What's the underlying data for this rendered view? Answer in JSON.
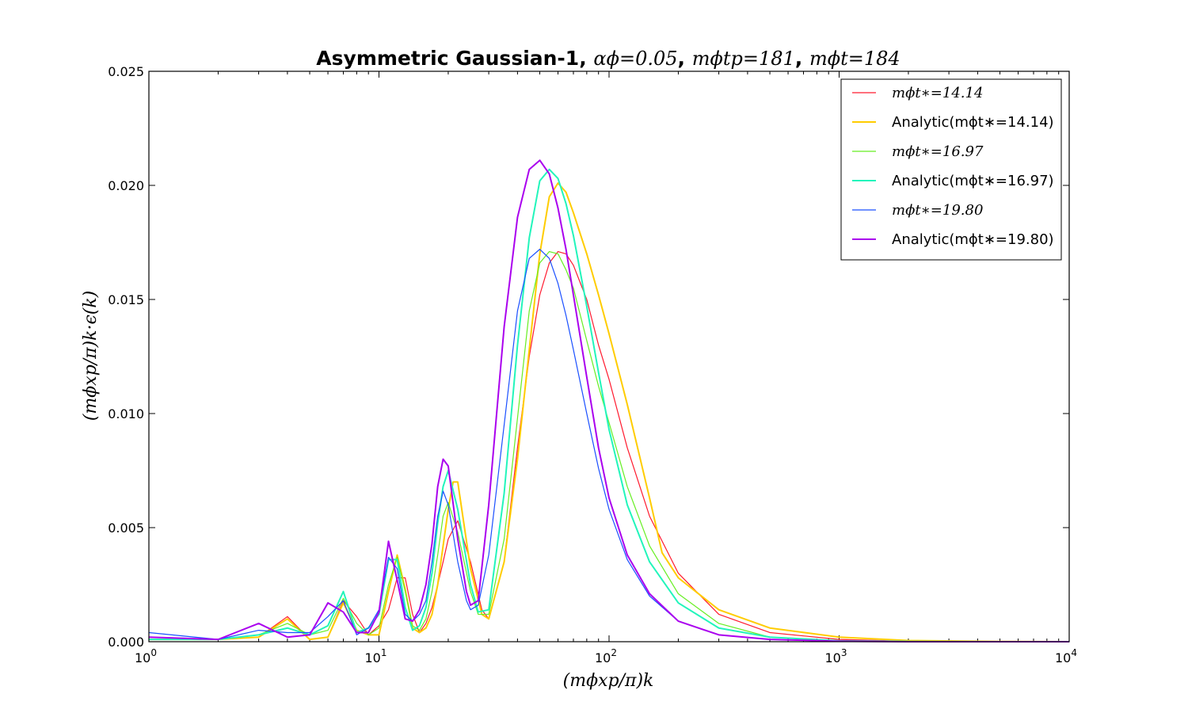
{
  "chart_data": {
    "type": "line",
    "title": {
      "prefix": "Asymmetric Gaussian-1, ",
      "alpha": "αϕ=0.05",
      "sep1": ", ",
      "tp": "mϕtp=181",
      "sep2": ", ",
      "t": "mϕt=184"
    },
    "xlabel": "(mϕxp/π)k",
    "ylabel": "(mϕxp/π)k·ϵ(k)",
    "xscale": "log",
    "xlim": [
      1,
      10000
    ],
    "ylim": [
      0,
      0.025
    ],
    "xticks": [
      {
        "value": 1,
        "base": "10",
        "exp": "0"
      },
      {
        "value": 10,
        "base": "10",
        "exp": "1"
      },
      {
        "value": 100,
        "base": "10",
        "exp": "2"
      },
      {
        "value": 1000,
        "base": "10",
        "exp": "3"
      },
      {
        "value": 10000,
        "base": "10",
        "exp": "4"
      }
    ],
    "yticks": [
      {
        "value": 0,
        "label": "0.000"
      },
      {
        "value": 0.005,
        "label": "0.005"
      },
      {
        "value": 0.01,
        "label": "0.010"
      },
      {
        "value": 0.015,
        "label": "0.015"
      },
      {
        "value": 0.02,
        "label": "0.020"
      },
      {
        "value": 0.025,
        "label": "0.025"
      }
    ],
    "grid": false,
    "legend_position": "top-right",
    "series": [
      {
        "name": "mϕt∗=14.14",
        "color": "#ff1a2e",
        "width": 1.2,
        "x": [
          1,
          2,
          3,
          4,
          5,
          6,
          7,
          8,
          9,
          10,
          11,
          12,
          13,
          14,
          15,
          16,
          17,
          18,
          19,
          20,
          22,
          25,
          28,
          30,
          35,
          40,
          45,
          50,
          55,
          60,
          65,
          70,
          80,
          90,
          100,
          120,
          150,
          200,
          300,
          500,
          1000,
          2000,
          5000,
          10000
        ],
        "y": [
          0.0001,
          0.0001,
          0.0002,
          0.0011,
          0.0001,
          0.0002,
          0.0018,
          0.0011,
          0.0003,
          0.0007,
          0.0014,
          0.0028,
          0.0028,
          0.0012,
          0.0004,
          0.0008,
          0.0015,
          0.0025,
          0.0035,
          0.0045,
          0.0053,
          0.0035,
          0.0014,
          0.001,
          0.0035,
          0.0085,
          0.0125,
          0.0152,
          0.0166,
          0.0171,
          0.017,
          0.0165,
          0.015,
          0.013,
          0.0115,
          0.0085,
          0.0055,
          0.003,
          0.0012,
          0.0004,
          0.0001,
          2e-05,
          0.0,
          0.0
        ]
      },
      {
        "name": "Analytic(mϕt∗=14.14)",
        "color": "#ffcc00",
        "width": 2,
        "x": [
          1,
          2,
          3,
          4,
          5,
          6,
          7,
          8,
          9,
          10,
          11,
          12,
          13,
          14,
          15,
          16,
          17,
          18,
          19,
          20,
          21,
          22,
          25,
          28,
          30,
          35,
          40,
          45,
          50,
          55,
          60,
          65,
          70,
          80,
          90,
          100,
          120,
          150,
          170,
          200,
          300,
          500,
          1000,
          2000,
          5000,
          10000
        ],
        "y": [
          0.0001,
          0.0001,
          0.0002,
          0.001,
          0.0001,
          0.0002,
          0.0017,
          0.0005,
          0.0003,
          0.0003,
          0.0022,
          0.0038,
          0.0023,
          0.0006,
          0.0004,
          0.0006,
          0.0012,
          0.0025,
          0.0042,
          0.0058,
          0.007,
          0.007,
          0.0032,
          0.0012,
          0.001,
          0.0035,
          0.008,
          0.0128,
          0.017,
          0.0195,
          0.0201,
          0.0197,
          0.0188,
          0.017,
          0.0152,
          0.0135,
          0.0104,
          0.0063,
          0.0039,
          0.0028,
          0.0014,
          0.0006,
          0.0002,
          5e-05,
          1e-05,
          0.0
        ]
      },
      {
        "name": "mϕt∗=16.97",
        "color": "#66ee22",
        "width": 1.2,
        "x": [
          1,
          2,
          3,
          4,
          5,
          6,
          7,
          8,
          9,
          10,
          11,
          12,
          13,
          14,
          15,
          16,
          17,
          18,
          19,
          20,
          22,
          25,
          27,
          30,
          35,
          40,
          45,
          50,
          55,
          60,
          65,
          70,
          80,
          90,
          100,
          120,
          150,
          200,
          300,
          500,
          1000,
          2000,
          5000,
          10000
        ],
        "y": [
          0.0001,
          0.0001,
          0.0003,
          0.0008,
          0.0003,
          0.0005,
          0.0019,
          0.0008,
          0.0003,
          0.0006,
          0.0025,
          0.0037,
          0.0022,
          0.0007,
          0.0005,
          0.001,
          0.0022,
          0.0038,
          0.0055,
          0.0061,
          0.0048,
          0.0022,
          0.0012,
          0.0012,
          0.0045,
          0.0098,
          0.0145,
          0.0166,
          0.0171,
          0.017,
          0.0163,
          0.0155,
          0.0132,
          0.0112,
          0.0096,
          0.0068,
          0.0042,
          0.0021,
          0.0008,
          0.0002,
          4e-05,
          1e-05,
          0.0,
          0.0
        ]
      },
      {
        "name": "Analytic(mϕt∗=16.97)",
        "color": "#22f5bb",
        "width": 2,
        "x": [
          1,
          2,
          3,
          4,
          5,
          6,
          7,
          8,
          9,
          10,
          11,
          12,
          13,
          14,
          15,
          16,
          17,
          18,
          19,
          20,
          22,
          25,
          27,
          30,
          35,
          40,
          45,
          50,
          55,
          60,
          65,
          70,
          80,
          90,
          100,
          120,
          150,
          200,
          300,
          500,
          1000,
          2000,
          5000,
          10000
        ],
        "y": [
          0.0001,
          0.0001,
          0.0003,
          0.0006,
          0.0003,
          0.0007,
          0.0022,
          0.0004,
          0.0006,
          0.0012,
          0.0036,
          0.0036,
          0.0015,
          0.0005,
          0.0007,
          0.0015,
          0.003,
          0.0052,
          0.0068,
          0.0075,
          0.0058,
          0.0025,
          0.0013,
          0.0014,
          0.0065,
          0.013,
          0.0177,
          0.0202,
          0.0207,
          0.0203,
          0.0192,
          0.0178,
          0.0147,
          0.0118,
          0.0093,
          0.006,
          0.0035,
          0.0017,
          0.0006,
          0.0002,
          4e-05,
          1e-05,
          0.0,
          0.0
        ]
      },
      {
        "name": "mϕt∗=19.80",
        "color": "#1a4fff",
        "width": 1.2,
        "x": [
          1,
          2,
          3,
          4,
          5,
          6,
          7,
          8,
          9,
          10,
          11,
          12,
          13,
          14,
          15,
          16,
          17,
          18,
          19,
          20,
          22,
          24,
          25,
          27,
          30,
          35,
          40,
          45,
          50,
          55,
          60,
          65,
          70,
          80,
          90,
          100,
          120,
          150,
          200,
          300,
          500,
          1000,
          2000,
          5000,
          10000
        ],
        "y": [
          0.0004,
          0.0001,
          0.0005,
          0.0004,
          0.0004,
          0.0011,
          0.0018,
          0.0003,
          0.0006,
          0.0014,
          0.0037,
          0.0032,
          0.0012,
          0.0009,
          0.0012,
          0.0018,
          0.0035,
          0.0055,
          0.0066,
          0.006,
          0.0035,
          0.0018,
          0.0014,
          0.0016,
          0.0038,
          0.0095,
          0.0145,
          0.0168,
          0.0172,
          0.0168,
          0.0157,
          0.0143,
          0.0128,
          0.01,
          0.0076,
          0.0058,
          0.0036,
          0.002,
          0.0009,
          0.0003,
          0.0001,
          2e-05,
          0.0,
          0.0,
          0.0
        ]
      },
      {
        "name": "Analytic(mϕt∗=19.80)",
        "color": "#aa00ee",
        "width": 2,
        "x": [
          1,
          2,
          3,
          4,
          5,
          6,
          7,
          8,
          9,
          10,
          11,
          12,
          13,
          14,
          15,
          16,
          17,
          18,
          19,
          20,
          22,
          24,
          25,
          27,
          30,
          35,
          40,
          45,
          50,
          55,
          60,
          65,
          70,
          80,
          90,
          100,
          120,
          150,
          200,
          300,
          500,
          1000,
          2000,
          5000,
          10000
        ],
        "y": [
          0.0002,
          0.0001,
          0.0008,
          0.0002,
          0.0003,
          0.0017,
          0.0013,
          0.0004,
          0.0004,
          0.0013,
          0.0044,
          0.0027,
          0.001,
          0.0009,
          0.0014,
          0.0025,
          0.0043,
          0.0068,
          0.008,
          0.0077,
          0.0045,
          0.0022,
          0.0016,
          0.0018,
          0.006,
          0.0138,
          0.0186,
          0.0207,
          0.0211,
          0.0205,
          0.019,
          0.0172,
          0.0152,
          0.0116,
          0.0085,
          0.0063,
          0.0038,
          0.0021,
          0.0009,
          0.0003,
          0.0001,
          2e-05,
          0.0,
          0.0,
          0.0
        ]
      }
    ]
  }
}
